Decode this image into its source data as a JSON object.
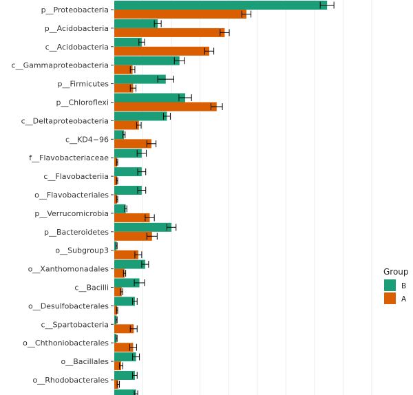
{
  "chart_data": {
    "type": "bar",
    "orientation": "horizontal",
    "title": "",
    "xlabel": "",
    "ylabel": "",
    "grid": true,
    "xlim": [
      0,
      0.45
    ],
    "categories": [
      "p__Proteobacteria",
      "p__Acidobacteria",
      "c__Acidobacteria",
      "c__Gammaproteobacteria",
      "p__Firmicutes",
      "p__Chloroflexi",
      "c__Deltaproteobacteria",
      "c__KD4−96",
      "f__Flavobacteriaceae",
      "c__Flavobacteriia",
      "o__Flavobacteriales",
      "p__Verrucomicrobia",
      "p__Bacteroidetes",
      "o__Subgroup3",
      "o__Xanthomonadales",
      "c__Bacilli",
      "o__Desulfobacterales",
      "c__Spartobacteria",
      "o__Chthoniobacterales",
      "o__Bacillales",
      "o__Rhodobacterales"
    ],
    "series": [
      {
        "name": "B",
        "color": "#1b9e77",
        "values": [
          0.372,
          0.076,
          0.048,
          0.114,
          0.09,
          0.124,
          0.092,
          0.017,
          0.048,
          0.048,
          0.048,
          0.02,
          0.1,
          0.004,
          0.054,
          0.044,
          0.036,
          0.004,
          0.004,
          0.038,
          0.036
        ],
        "errors": [
          0.012,
          0.006,
          0.005,
          0.009,
          0.014,
          0.011,
          0.006,
          0.002,
          0.008,
          0.007,
          0.007,
          0.002,
          0.008,
          0.001,
          0.006,
          0.009,
          0.004,
          0.001,
          0.001,
          0.006,
          0.004
        ]
      },
      {
        "name": "A",
        "color": "#d95f02",
        "values": [
          0.231,
          0.193,
          0.166,
          0.032,
          0.033,
          0.179,
          0.043,
          0.065,
          0.005,
          0.005,
          0.005,
          0.062,
          0.066,
          0.042,
          0.018,
          0.013,
          0.005,
          0.034,
          0.033,
          0.012,
          0.007
        ],
        "errors": [
          0.008,
          0.008,
          0.008,
          0.004,
          0.005,
          0.01,
          0.004,
          0.008,
          0.001,
          0.001,
          0.001,
          0.008,
          0.009,
          0.006,
          0.002,
          0.002,
          0.001,
          0.006,
          0.006,
          0.003,
          0.002
        ]
      }
    ],
    "partial_bar": {
      "series": "B",
      "value": 0.038,
      "error": 0.003
    },
    "legend": {
      "title": "Group",
      "position": "right",
      "entries": [
        "B",
        "A"
      ]
    }
  }
}
